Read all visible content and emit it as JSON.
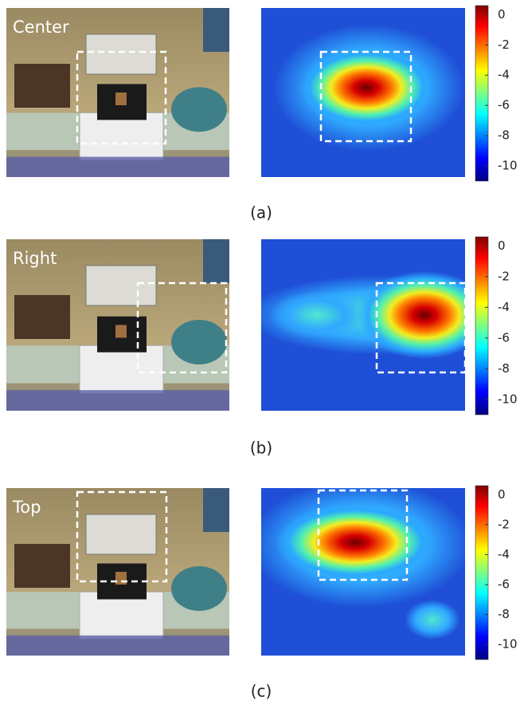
{
  "panels": [
    {
      "label": "Center",
      "caption": "(a)"
    },
    {
      "label": "Right",
      "caption": "(b)"
    },
    {
      "label": "Top",
      "caption": "(c)"
    }
  ],
  "colorbar": {
    "lim": [
      -11,
      0.6
    ],
    "ticks": [
      0,
      -2,
      -4,
      -6,
      -8,
      -10
    ]
  }
}
